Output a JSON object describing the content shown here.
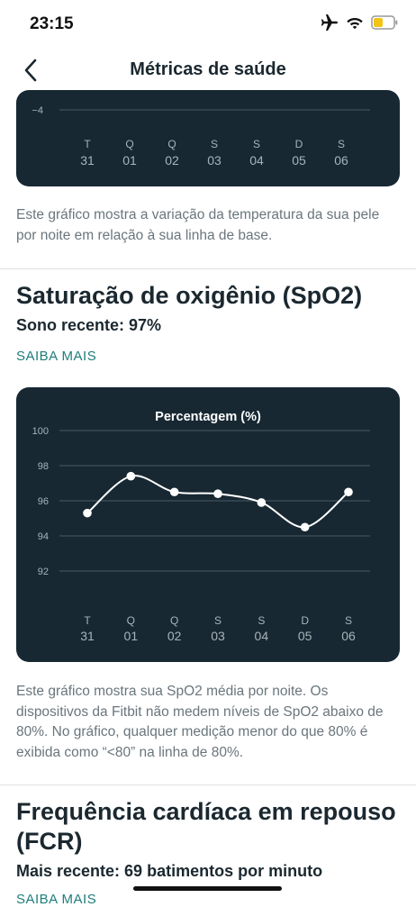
{
  "status": {
    "time": "23:15",
    "battery_color": "#f2c418"
  },
  "header": {
    "title": "Métricas de saúde"
  },
  "temperature": {
    "description": "Este gráfico mostra a variação da temperatura da sua pele por noite em relação à sua linha de base.",
    "chart_data": {
      "type": "line",
      "y_ticks": [
        "−4"
      ],
      "categories_day": [
        "T",
        "Q",
        "Q",
        "S",
        "S",
        "D",
        "S"
      ],
      "categories_date": [
        "31",
        "01",
        "02",
        "03",
        "04",
        "05",
        "06"
      ]
    }
  },
  "spo2": {
    "title": "Saturação de oxigênio (SpO2)",
    "recent": "Sono recente: 97%",
    "learn_more": "SAIBA MAIS",
    "description": "Este gráfico mostra sua SpO2 média por noite. Os dispositivos da Fitbit não medem níveis de SpO2 abaixo de 80%. No gráfico, qualquer medição menor do que 80% é exibida como “<80” na linha de 80%.",
    "chart_data": {
      "type": "line",
      "title": "Percentagem (%)",
      "y_ticks": [
        100,
        98,
        96,
        94,
        92
      ],
      "ylim": [
        92,
        100
      ],
      "categories_day": [
        "T",
        "Q",
        "Q",
        "S",
        "S",
        "D",
        "S"
      ],
      "categories_date": [
        "31",
        "01",
        "02",
        "03",
        "04",
        "05",
        "06"
      ],
      "values": [
        95.3,
        97.4,
        96.5,
        96.4,
        95.9,
        94.5,
        96.5
      ],
      "grid": true
    }
  },
  "fcr": {
    "title": "Frequência cardíaca em repouso (FCR)",
    "recent": "Mais recente: 69 batimentos por minuto",
    "learn_more": "SAIBA MAIS"
  },
  "colors": {
    "card_bg": "#172833",
    "accent": "#1d7e7b",
    "line": "#ffffff",
    "grid": "#4b5a63"
  }
}
